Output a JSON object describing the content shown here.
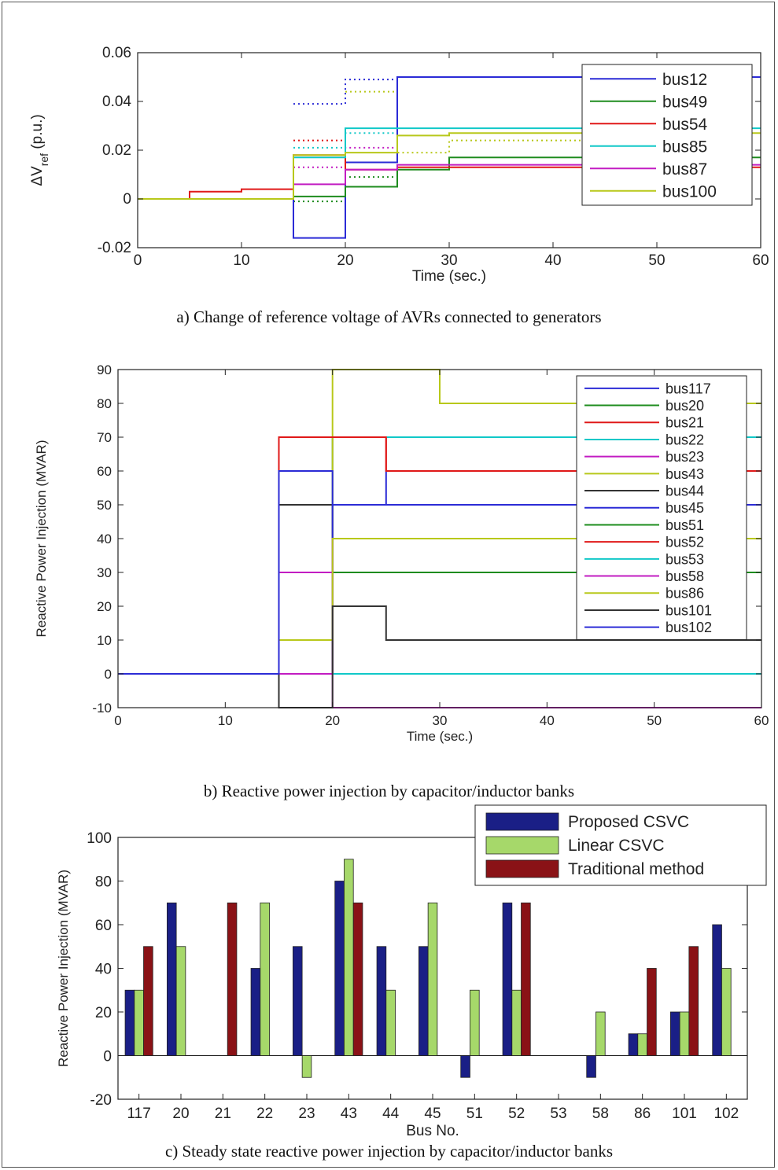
{
  "chart_data": [
    {
      "type": "line",
      "step": true,
      "caption": "a) Change of reference voltage of AVRs connected to generators",
      "xlabel": "Time (sec.)",
      "ylabel": "ΔV_ref (p.u.)",
      "ylabel_main": "ΔV",
      "ylabel_sub": "ref",
      "ylabel_unit": " (p.u.)",
      "xlim": [
        0,
        60
      ],
      "ylim": [
        -0.02,
        0.06
      ],
      "xticks": [
        0,
        10,
        20,
        30,
        40,
        50,
        60
      ],
      "yticks": [
        -0.02,
        0,
        0.02,
        0.04,
        0.06
      ],
      "ytick_labels": [
        "-0.02",
        "0",
        "0.02",
        "0.04",
        "0.06"
      ],
      "grid": false,
      "legend_position": "top-right",
      "series": [
        {
          "name": "bus12",
          "color": "#2b2bd6",
          "points": [
            [
              0,
              0
            ],
            [
              15,
              0
            ],
            [
              15,
              -0.016
            ],
            [
              20,
              -0.016
            ],
            [
              20,
              0.015
            ],
            [
              25,
              0.015
            ],
            [
              25,
              0.05
            ],
            [
              60,
              0.05
            ]
          ]
        },
        {
          "name": "bus49",
          "color": "#1e8c1e",
          "points": [
            [
              0,
              0
            ],
            [
              15,
              0
            ],
            [
              15,
              0.001
            ],
            [
              20,
              0.001
            ],
            [
              20,
              0.005
            ],
            [
              25,
              0.005
            ],
            [
              25,
              0.012
            ],
            [
              30,
              0.012
            ],
            [
              30,
              0.017
            ],
            [
              60,
              0.017
            ]
          ]
        },
        {
          "name": "bus54",
          "color": "#e01818",
          "points": [
            [
              0,
              0
            ],
            [
              5,
              0
            ],
            [
              5,
              0.003
            ],
            [
              10,
              0.003
            ],
            [
              10,
              0.004
            ],
            [
              15,
              0.004
            ],
            [
              15,
              0.018
            ],
            [
              20,
              0.018
            ],
            [
              20,
              0.012
            ],
            [
              25,
              0.012
            ],
            [
              25,
              0.013
            ],
            [
              60,
              0.013
            ]
          ]
        },
        {
          "name": "bus85",
          "color": "#10c8c8",
          "points": [
            [
              0,
              0
            ],
            [
              15,
              0
            ],
            [
              15,
              0.017
            ],
            [
              20,
              0.017
            ],
            [
              20,
              0.029
            ],
            [
              60,
              0.029
            ]
          ]
        },
        {
          "name": "bus87",
          "color": "#c21cc2",
          "points": [
            [
              0,
              0
            ],
            [
              15,
              0
            ],
            [
              15,
              0.006
            ],
            [
              20,
              0.006
            ],
            [
              20,
              0.012
            ],
            [
              25,
              0.012
            ],
            [
              25,
              0.014
            ],
            [
              60,
              0.014
            ]
          ]
        },
        {
          "name": "bus100",
          "color": "#b8c81a",
          "points": [
            [
              0,
              0
            ],
            [
              15,
              0
            ],
            [
              15,
              0.018
            ],
            [
              20,
              0.018
            ],
            [
              20,
              0.019
            ],
            [
              25,
              0.019
            ],
            [
              25,
              0.026
            ],
            [
              30,
              0.026
            ],
            [
              30,
              0.027
            ],
            [
              60,
              0.027
            ]
          ]
        }
      ],
      "dotted_series": [
        {
          "color": "#2b2bd6",
          "points": [
            [
              15,
              0.039
            ],
            [
              20,
              0.039
            ],
            [
              20,
              0.049
            ],
            [
              25,
              0.049
            ]
          ]
        },
        {
          "color": "#1e8c1e",
          "points": [
            [
              15,
              -0.001
            ],
            [
              20,
              -0.001
            ],
            [
              20,
              0.009
            ],
            [
              25,
              0.009
            ]
          ]
        },
        {
          "color": "#e01818",
          "points": [
            [
              15,
              0.024
            ],
            [
              20,
              0.024
            ]
          ]
        },
        {
          "color": "#10c8c8",
          "points": [
            [
              15,
              0.021
            ],
            [
              20,
              0.021
            ],
            [
              20,
              0.027
            ],
            [
              25,
              0.027
            ]
          ]
        },
        {
          "color": "#c21cc2",
          "points": [
            [
              15,
              0.013
            ],
            [
              20,
              0.013
            ],
            [
              20,
              0.021
            ],
            [
              25,
              0.021
            ]
          ]
        },
        {
          "color": "#b8c81a",
          "points": [
            [
              20,
              0.044
            ],
            [
              25,
              0.044
            ],
            [
              25,
              0.019
            ],
            [
              30,
              0.019
            ],
            [
              30,
              0.024
            ],
            [
              45,
              0.024
            ]
          ]
        }
      ]
    },
    {
      "type": "line",
      "step": true,
      "caption": "b) Reactive power injection by capacitor/inductor banks",
      "xlabel": "Time (sec.)",
      "ylabel": "Reactive Power Injection (MVAR)",
      "xlim": [
        0,
        60
      ],
      "ylim": [
        -10,
        90
      ],
      "xticks": [
        0,
        10,
        20,
        30,
        40,
        50,
        60
      ],
      "yticks": [
        -10,
        0,
        10,
        20,
        30,
        40,
        50,
        60,
        70,
        80,
        90
      ],
      "ytick_labels": [
        "-10",
        "0",
        "10",
        "20",
        "30",
        "40",
        "50",
        "60",
        "70",
        "80",
        "90"
      ],
      "grid": false,
      "legend_position": "top-right",
      "series": [
        {
          "name": "bus117",
          "color": "#2b2bd6",
          "points": [
            [
              0,
              0
            ],
            [
              15,
              0
            ],
            [
              15,
              30
            ],
            [
              60,
              30
            ]
          ]
        },
        {
          "name": "bus20",
          "color": "#1e8c1e",
          "points": [
            [
              0,
              0
            ],
            [
              15,
              0
            ],
            [
              15,
              70
            ],
            [
              60,
              70
            ]
          ]
        },
        {
          "name": "bus21",
          "color": "#e01818",
          "points": [
            [
              0,
              0
            ],
            [
              20,
              0
            ],
            [
              20,
              70
            ],
            [
              25,
              70
            ],
            [
              25,
              60
            ],
            [
              25,
              70
            ],
            [
              60,
              70
            ]
          ]
        },
        {
          "name": "bus22",
          "color": "#10c8c8",
          "points": [
            [
              0,
              0
            ],
            [
              20,
              0
            ],
            [
              20,
              70
            ],
            [
              60,
              70
            ]
          ]
        },
        {
          "name": "bus23",
          "color": "#c21cc2",
          "points": [
            [
              0,
              0
            ],
            [
              15,
              0
            ],
            [
              15,
              30
            ],
            [
              20,
              30
            ],
            [
              20,
              -10
            ],
            [
              60,
              -10
            ]
          ]
        },
        {
          "name": "bus43",
          "color": "#b8c81a",
          "points": [
            [
              0,
              0
            ],
            [
              20,
              0
            ],
            [
              20,
              90
            ],
            [
              30,
              90
            ],
            [
              30,
              80
            ],
            [
              60,
              80
            ]
          ]
        },
        {
          "name": "bus44",
          "color": "#333333",
          "points": [
            [
              0,
              0
            ],
            [
              15,
              0
            ],
            [
              15,
              50
            ],
            [
              20,
              50
            ],
            [
              20,
              30
            ],
            [
              60,
              30
            ]
          ]
        },
        {
          "name": "bus45",
          "color": "#2b2bd6",
          "points": [
            [
              0,
              0
            ],
            [
              20,
              0
            ],
            [
              20,
              50
            ],
            [
              25,
              50
            ],
            [
              25,
              60
            ],
            [
              60,
              60
            ]
          ]
        },
        {
          "name": "bus51",
          "color": "#1e8c1e",
          "points": [
            [
              0,
              0
            ],
            [
              20,
              0
            ],
            [
              20,
              30
            ],
            [
              60,
              30
            ]
          ]
        },
        {
          "name": "bus52",
          "color": "#e01818",
          "points": [
            [
              0,
              0
            ],
            [
              15,
              0
            ],
            [
              15,
              70
            ],
            [
              25,
              70
            ],
            [
              25,
              60
            ],
            [
              60,
              60
            ]
          ]
        },
        {
          "name": "bus53",
          "color": "#10c8c8",
          "points": [
            [
              0,
              0
            ],
            [
              60,
              0
            ]
          ]
        },
        {
          "name": "bus58",
          "color": "#c21cc2",
          "points": [
            [
              0,
              0
            ],
            [
              20,
              0
            ],
            [
              20,
              40
            ],
            [
              60,
              40
            ]
          ]
        },
        {
          "name": "bus86",
          "color": "#b8c81a",
          "points": [
            [
              0,
              0
            ],
            [
              15,
              0
            ],
            [
              15,
              10
            ],
            [
              20,
              10
            ],
            [
              20,
              40
            ],
            [
              60,
              40
            ]
          ]
        },
        {
          "name": "bus101",
          "color": "#333333",
          "points": [
            [
              0,
              0
            ],
            [
              15,
              0
            ],
            [
              15,
              -10
            ],
            [
              20,
              -10
            ],
            [
              20,
              20
            ],
            [
              25,
              20
            ],
            [
              25,
              10
            ],
            [
              60,
              10
            ]
          ]
        },
        {
          "name": "bus102",
          "color": "#2b2bd6",
          "points": [
            [
              0,
              0
            ],
            [
              15,
              0
            ],
            [
              15,
              60
            ],
            [
              20,
              60
            ],
            [
              20,
              50
            ],
            [
              60,
              50
            ]
          ]
        }
      ]
    },
    {
      "type": "bar",
      "caption": "c) Steady state reactive power injection by capacitor/inductor banks",
      "xlabel": "Bus No.",
      "ylabel": "Reactive Power Injection (MVAR)",
      "ylim": [
        -20,
        100
      ],
      "yticks": [
        -20,
        0,
        20,
        40,
        60,
        80,
        100
      ],
      "ytick_labels": [
        "-20",
        "0",
        "20",
        "40",
        "60",
        "80",
        "100"
      ],
      "grid": false,
      "legend_position": "top-right",
      "categories": [
        "117",
        "20",
        "21",
        "22",
        "23",
        "43",
        "44",
        "45",
        "51",
        "52",
        "53",
        "58",
        "86",
        "101",
        "102"
      ],
      "series": [
        {
          "name": "Proposed CSVC",
          "color": "#1a1f86",
          "values": [
            30,
            70,
            0,
            40,
            50,
            80,
            50,
            50,
            -10,
            70,
            0,
            -10,
            10,
            20,
            60
          ]
        },
        {
          "name": "Linear CSVC",
          "color": "#a6d86a",
          "values": [
            30,
            50,
            0,
            70,
            -10,
            90,
            30,
            70,
            30,
            30,
            0,
            20,
            10,
            20,
            40
          ]
        },
        {
          "name": "Traditional method",
          "color": "#8a1216",
          "values": [
            50,
            0,
            70,
            0,
            0,
            70,
            0,
            0,
            0,
            70,
            0,
            0,
            40,
            50,
            0
          ]
        }
      ]
    }
  ]
}
